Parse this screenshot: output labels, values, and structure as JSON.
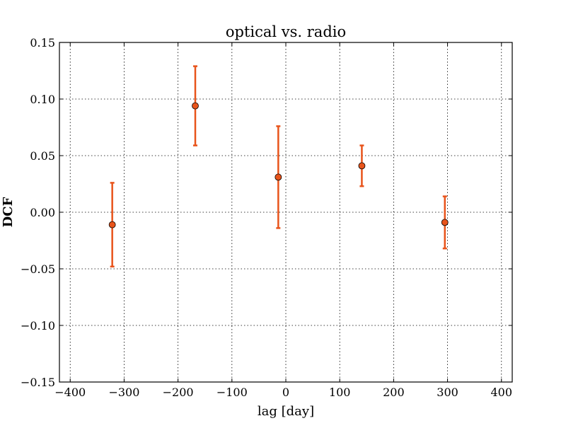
{
  "chart_data": {
    "type": "scatter",
    "title": "optical vs. radio",
    "xlabel": "lag [day]",
    "ylabel": "DCF",
    "xlim": [
      -420,
      420
    ],
    "ylim": [
      -0.15,
      0.15
    ],
    "x_ticks": [
      -400,
      -300,
      -200,
      -100,
      0,
      100,
      200,
      300,
      400
    ],
    "x_tick_labels": [
      "−400",
      "−300",
      "−200",
      "−100",
      "0",
      "100",
      "200",
      "300",
      "400"
    ],
    "y_ticks": [
      -0.15,
      -0.1,
      -0.05,
      0.0,
      0.05,
      0.1,
      0.15
    ],
    "y_tick_labels": [
      "−0.15",
      "−0.10",
      "−0.05",
      "0.00",
      "0.05",
      "0.10",
      "0.15"
    ],
    "grid": true,
    "marker_color": "#e8541b",
    "series": [
      {
        "points": [
          {
            "x": -322,
            "y": -0.011,
            "y_err": 0.037
          },
          {
            "x": -168,
            "y": 0.094,
            "y_err": 0.035
          },
          {
            "x": -14,
            "y": 0.031,
            "y_err": 0.045
          },
          {
            "x": 141,
            "y": 0.041,
            "y_err": 0.018
          },
          {
            "x": 295,
            "y": -0.009,
            "y_err": 0.023
          }
        ]
      }
    ]
  }
}
